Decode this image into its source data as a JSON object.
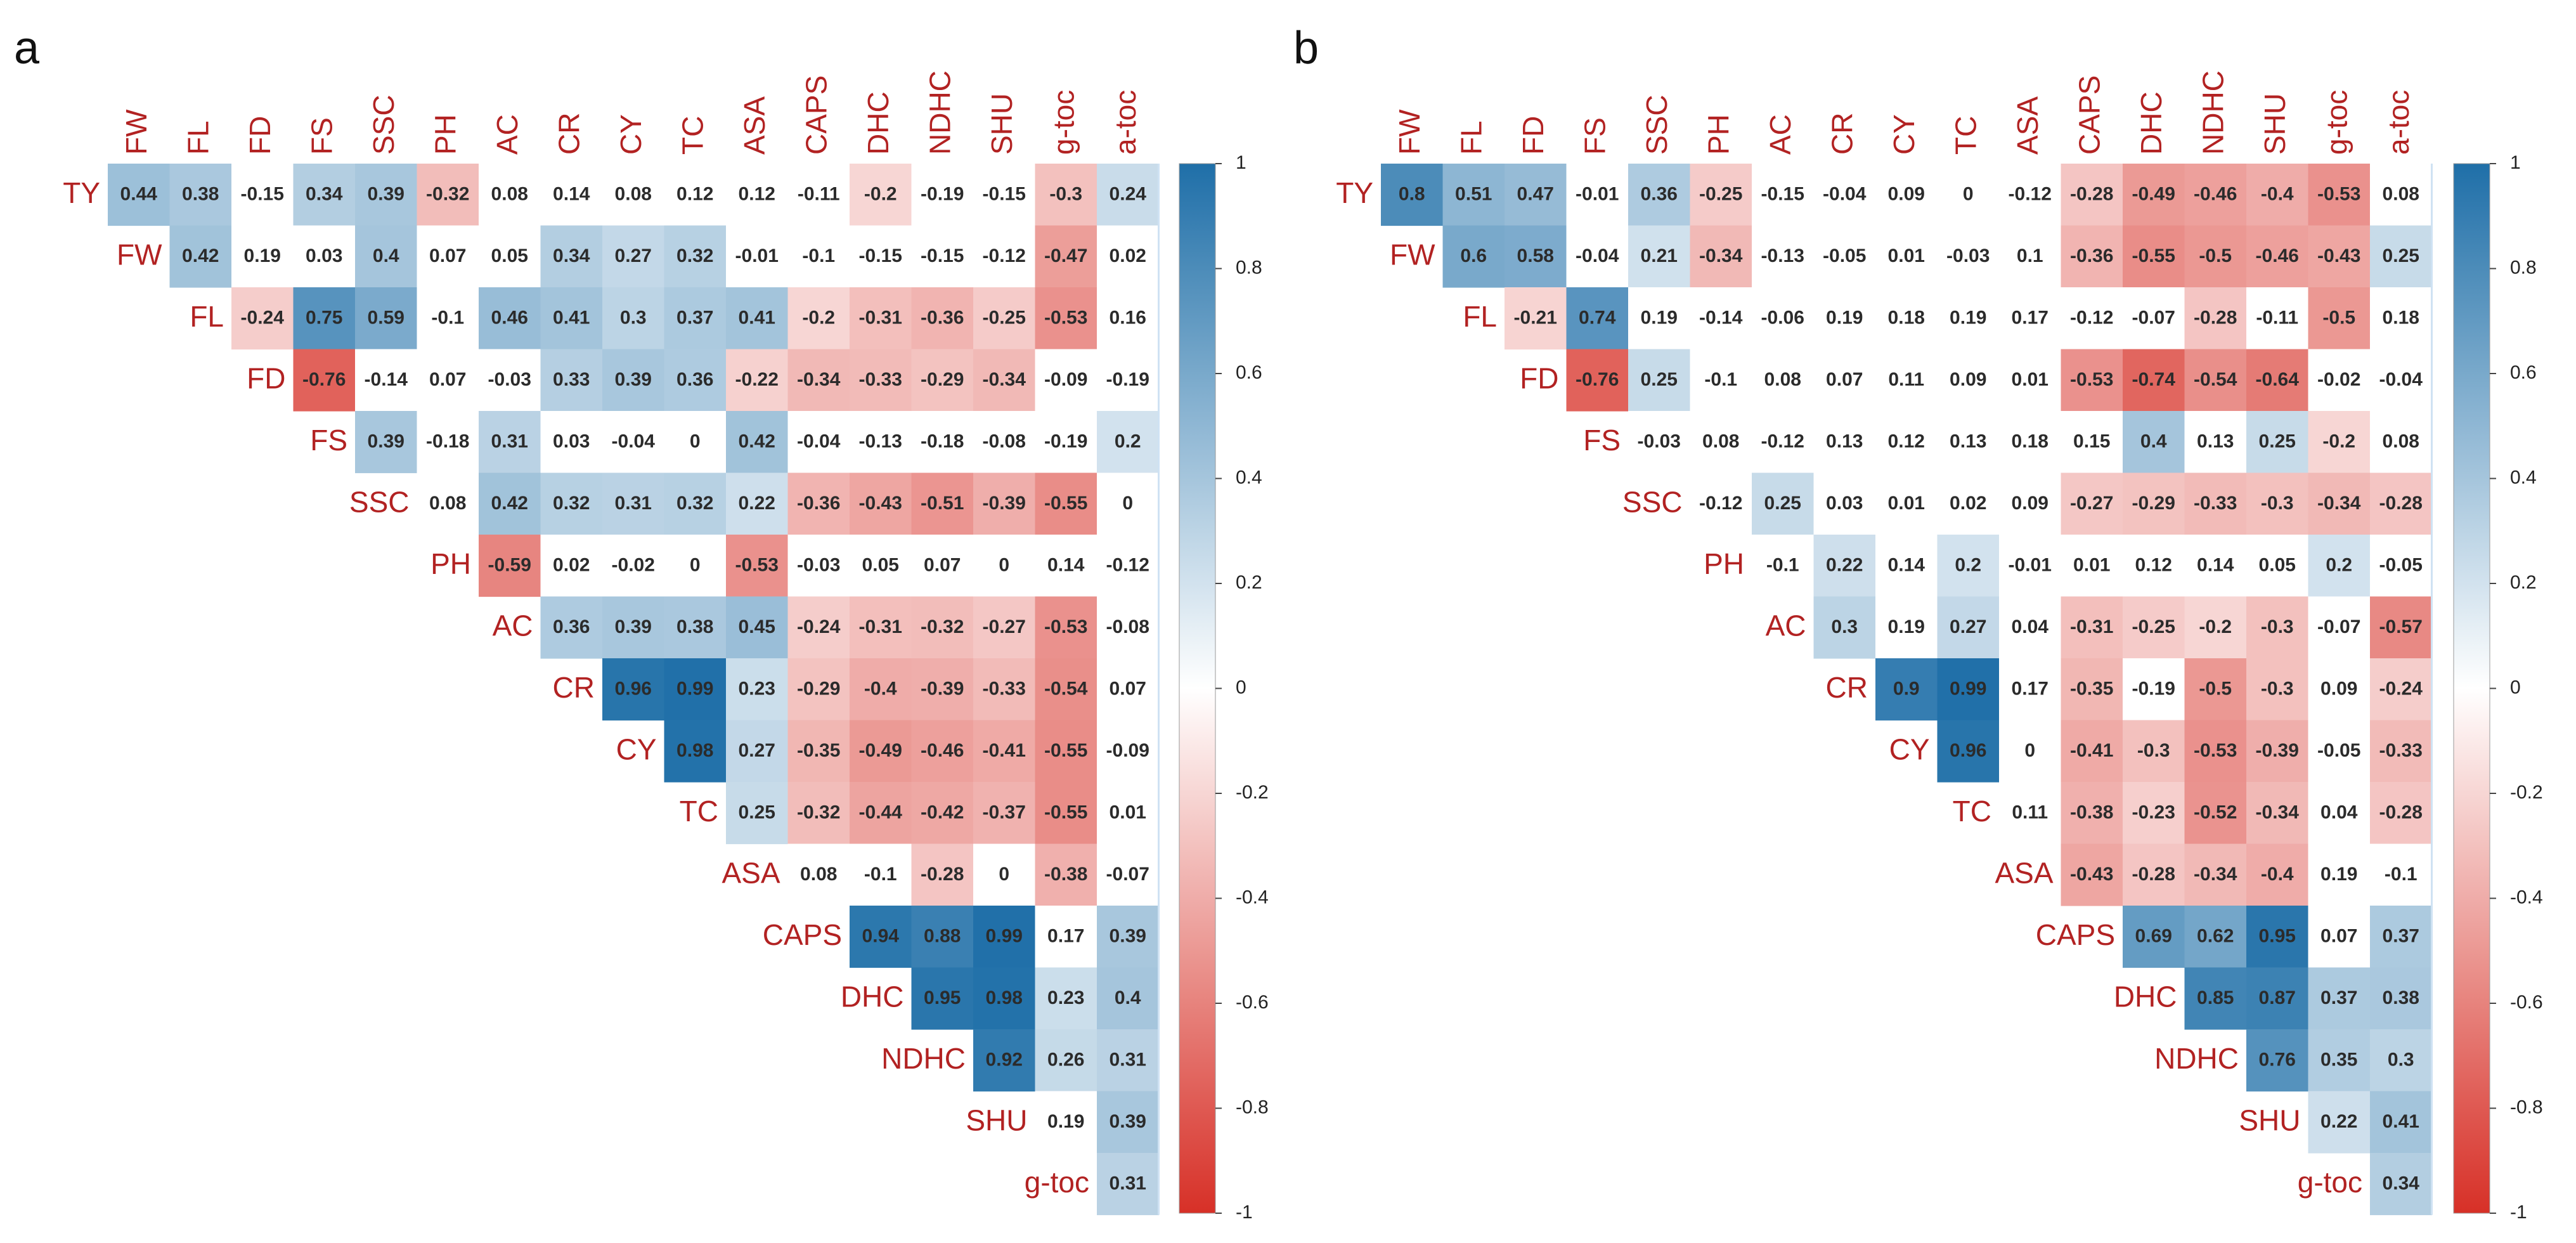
{
  "colors": {
    "negative": "#d73027",
    "neutral": "#ffffff",
    "positive": "#1f6fa8",
    "label": "#b22222"
  },
  "chart_data": [
    {
      "type": "heatmap",
      "panel": "a",
      "title": "",
      "row_labels": [
        "TY",
        "FW",
        "FL",
        "FD",
        "FS",
        "SSC",
        "PH",
        "AC",
        "CR",
        "CY",
        "TC",
        "ASA",
        "CAPS",
        "DHC",
        "NDHC",
        "SHU",
        "g-toc"
      ],
      "col_labels": [
        "FW",
        "FL",
        "FD",
        "FS",
        "SSC",
        "PH",
        "AC",
        "CR",
        "CY",
        "TC",
        "ASA",
        "CAPS",
        "DHC",
        "NDHC",
        "SHU",
        "g-toc",
        "a-toc"
      ],
      "values": [
        [
          0.44,
          0.38,
          -0.15,
          0.34,
          0.39,
          -0.32,
          0.08,
          0.14,
          0.08,
          0.12,
          0.12,
          -0.11,
          -0.2,
          -0.19,
          -0.15,
          -0.3,
          0.24
        ],
        [
          null,
          0.42,
          0.19,
          0.03,
          0.4,
          0.07,
          0.05,
          0.34,
          0.27,
          0.32,
          -0.01,
          -0.1,
          -0.15,
          -0.15,
          -0.12,
          -0.47,
          0.02
        ],
        [
          null,
          null,
          -0.24,
          0.75,
          0.59,
          -0.1,
          0.46,
          0.41,
          0.3,
          0.37,
          0.41,
          -0.2,
          -0.31,
          -0.36,
          -0.25,
          -0.53,
          0.16
        ],
        [
          null,
          null,
          null,
          -0.76,
          -0.14,
          0.07,
          -0.03,
          0.33,
          0.39,
          0.36,
          -0.22,
          -0.34,
          -0.33,
          -0.29,
          -0.34,
          -0.09,
          -0.19
        ],
        [
          null,
          null,
          null,
          null,
          0.39,
          -0.18,
          0.31,
          0.03,
          -0.04,
          0,
          0.42,
          -0.04,
          -0.13,
          -0.18,
          -0.08,
          -0.19,
          0.2
        ],
        [
          null,
          null,
          null,
          null,
          null,
          0.08,
          0.42,
          0.32,
          0.31,
          0.32,
          0.22,
          -0.36,
          -0.43,
          -0.51,
          -0.39,
          -0.55,
          0
        ],
        [
          null,
          null,
          null,
          null,
          null,
          null,
          -0.59,
          0.02,
          -0.02,
          0,
          -0.53,
          -0.03,
          0.05,
          0.07,
          0,
          0.14,
          -0.12
        ],
        [
          null,
          null,
          null,
          null,
          null,
          null,
          null,
          0.36,
          0.39,
          0.38,
          0.45,
          -0.24,
          -0.31,
          -0.32,
          -0.27,
          -0.53,
          -0.08
        ],
        [
          null,
          null,
          null,
          null,
          null,
          null,
          null,
          null,
          0.96,
          0.99,
          0.23,
          -0.29,
          -0.4,
          -0.39,
          -0.33,
          -0.54,
          0.07
        ],
        [
          null,
          null,
          null,
          null,
          null,
          null,
          null,
          null,
          null,
          0.98,
          0.27,
          -0.35,
          -0.49,
          -0.46,
          -0.41,
          -0.55,
          -0.09
        ],
        [
          null,
          null,
          null,
          null,
          null,
          null,
          null,
          null,
          null,
          null,
          0.25,
          -0.32,
          -0.44,
          -0.42,
          -0.37,
          -0.55,
          0.01
        ],
        [
          null,
          null,
          null,
          null,
          null,
          null,
          null,
          null,
          null,
          null,
          null,
          0.08,
          -0.1,
          -0.28,
          0,
          -0.38,
          -0.07
        ],
        [
          null,
          null,
          null,
          null,
          null,
          null,
          null,
          null,
          null,
          null,
          null,
          null,
          0.94,
          0.88,
          0.99,
          0.17,
          0.39
        ],
        [
          null,
          null,
          null,
          null,
          null,
          null,
          null,
          null,
          null,
          null,
          null,
          null,
          null,
          0.95,
          0.98,
          0.23,
          0.4
        ],
        [
          null,
          null,
          null,
          null,
          null,
          null,
          null,
          null,
          null,
          null,
          null,
          null,
          null,
          null,
          0.92,
          0.26,
          0.31
        ],
        [
          null,
          null,
          null,
          null,
          null,
          null,
          null,
          null,
          null,
          null,
          null,
          null,
          null,
          null,
          null,
          0.19,
          0.39
        ],
        [
          null,
          null,
          null,
          null,
          null,
          null,
          null,
          null,
          null,
          null,
          null,
          null,
          null,
          null,
          null,
          null,
          0.31
        ]
      ],
      "colorbar": {
        "range": [
          -1,
          1
        ],
        "ticks": [
          1,
          0.8,
          0.6,
          0.4,
          0.2,
          0,
          -0.2,
          -0.4,
          -0.6,
          -0.8,
          -1
        ]
      }
    },
    {
      "type": "heatmap",
      "panel": "b",
      "title": "",
      "row_labels": [
        "TY",
        "FW",
        "FL",
        "FD",
        "FS",
        "SSC",
        "PH",
        "AC",
        "CR",
        "CY",
        "TC",
        "ASA",
        "CAPS",
        "DHC",
        "NDHC",
        "SHU",
        "g-toc"
      ],
      "col_labels": [
        "FW",
        "FL",
        "FD",
        "FS",
        "SSC",
        "PH",
        "AC",
        "CR",
        "CY",
        "TC",
        "ASA",
        "CAPS",
        "DHC",
        "NDHC",
        "SHU",
        "g-toc",
        "a-toc"
      ],
      "values": [
        [
          0.8,
          0.51,
          0.47,
          -0.01,
          0.36,
          -0.25,
          -0.15,
          -0.04,
          0.09,
          0,
          -0.12,
          -0.28,
          -0.49,
          -0.46,
          -0.4,
          -0.53,
          0.08
        ],
        [
          null,
          0.6,
          0.58,
          -0.04,
          0.21,
          -0.34,
          -0.13,
          -0.05,
          0.01,
          -0.03,
          0.1,
          -0.36,
          -0.55,
          -0.5,
          -0.46,
          -0.43,
          0.25
        ],
        [
          null,
          null,
          -0.21,
          0.74,
          0.19,
          -0.14,
          -0.06,
          0.19,
          0.18,
          0.19,
          0.17,
          -0.12,
          -0.07,
          -0.28,
          -0.11,
          -0.5,
          0.18
        ],
        [
          null,
          null,
          null,
          -0.76,
          0.25,
          -0.1,
          0.08,
          0.07,
          0.11,
          0.09,
          0.01,
          -0.53,
          -0.74,
          -0.54,
          -0.64,
          -0.02,
          -0.04
        ],
        [
          null,
          null,
          null,
          null,
          -0.03,
          0.08,
          -0.12,
          0.13,
          0.12,
          0.13,
          0.18,
          0.15,
          0.4,
          0.13,
          0.25,
          -0.2,
          0.08
        ],
        [
          null,
          null,
          null,
          null,
          null,
          -0.12,
          0.25,
          0.03,
          0.01,
          0.02,
          0.09,
          -0.27,
          -0.29,
          -0.33,
          -0.3,
          -0.34,
          -0.28
        ],
        [
          null,
          null,
          null,
          null,
          null,
          null,
          -0.1,
          0.22,
          0.14,
          0.2,
          -0.01,
          0.01,
          0.12,
          0.14,
          0.05,
          0.2,
          -0.05
        ],
        [
          null,
          null,
          null,
          null,
          null,
          null,
          null,
          0.3,
          0.19,
          0.27,
          0.04,
          -0.31,
          -0.25,
          -0.2,
          -0.3,
          -0.07,
          -0.57
        ],
        [
          null,
          null,
          null,
          null,
          null,
          null,
          null,
          null,
          0.9,
          0.99,
          0.17,
          -0.35,
          -0.19,
          -0.5,
          -0.3,
          0.09,
          -0.24
        ],
        [
          null,
          null,
          null,
          null,
          null,
          null,
          null,
          null,
          null,
          0.96,
          0,
          -0.41,
          -0.3,
          -0.53,
          -0.39,
          -0.05,
          -0.33
        ],
        [
          null,
          null,
          null,
          null,
          null,
          null,
          null,
          null,
          null,
          null,
          0.11,
          -0.38,
          -0.23,
          -0.52,
          -0.34,
          0.04,
          -0.28
        ],
        [
          null,
          null,
          null,
          null,
          null,
          null,
          null,
          null,
          null,
          null,
          null,
          -0.43,
          -0.28,
          -0.34,
          -0.4,
          0.19,
          -0.1
        ],
        [
          null,
          null,
          null,
          null,
          null,
          null,
          null,
          null,
          null,
          null,
          null,
          null,
          0.69,
          0.62,
          0.95,
          0.07,
          0.37
        ],
        [
          null,
          null,
          null,
          null,
          null,
          null,
          null,
          null,
          null,
          null,
          null,
          null,
          null,
          0.85,
          0.87,
          0.37,
          0.38
        ],
        [
          null,
          null,
          null,
          null,
          null,
          null,
          null,
          null,
          null,
          null,
          null,
          null,
          null,
          null,
          0.76,
          0.35,
          0.3
        ],
        [
          null,
          null,
          null,
          null,
          null,
          null,
          null,
          null,
          null,
          null,
          null,
          null,
          null,
          null,
          null,
          0.22,
          0.41
        ],
        [
          null,
          null,
          null,
          null,
          null,
          null,
          null,
          null,
          null,
          null,
          null,
          null,
          null,
          null,
          null,
          null,
          0.34
        ]
      ],
      "colorbar": {
        "range": [
          -1,
          1
        ],
        "ticks": [
          1,
          0.8,
          0.6,
          0.4,
          0.2,
          0,
          -0.2,
          -0.4,
          -0.6,
          -0.8,
          -1
        ]
      }
    }
  ]
}
